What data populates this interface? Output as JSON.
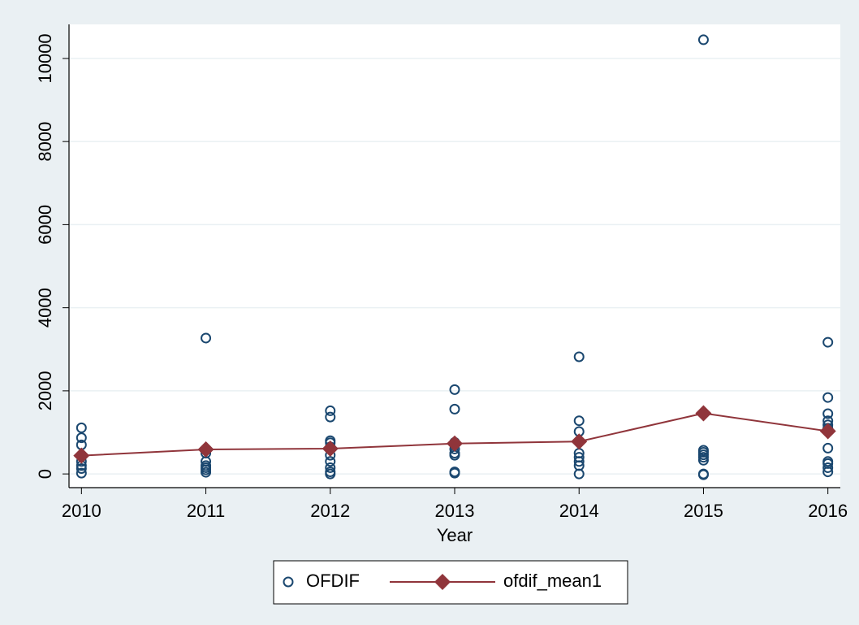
{
  "chart_data": {
    "type": "scatter",
    "x_label": "Year",
    "xlim": [
      2009.9,
      2016.1
    ],
    "xticks": [
      2010,
      2011,
      2012,
      2013,
      2014,
      2015,
      2016
    ],
    "ylim": [
      -330,
      10820
    ],
    "yticks": [
      0,
      2000,
      4000,
      6000,
      8000,
      10000
    ],
    "grid": true,
    "legend_position": "bottom",
    "series": [
      {
        "name": "OFDIF",
        "type": "scatter",
        "color": "#1a476f",
        "x": [
          2010,
          2010,
          2010,
          2010,
          2010,
          2010,
          2010,
          2010,
          2011,
          2011,
          2011,
          2011,
          2011,
          2011,
          2011,
          2012,
          2012,
          2012,
          2012,
          2012,
          2012,
          2012,
          2012,
          2012,
          2012,
          2013,
          2013,
          2013,
          2013,
          2013,
          2013,
          2013,
          2013,
          2013,
          2014,
          2014,
          2014,
          2014,
          2014,
          2014,
          2014,
          2014,
          2015,
          2015,
          2015,
          2015,
          2015,
          2015,
          2015,
          2015,
          2016,
          2016,
          2016,
          2016,
          2016,
          2016,
          2016,
          2016,
          2016,
          2016,
          2016
        ],
        "values": [
          1110,
          870,
          700,
          430,
          300,
          200,
          130,
          20,
          3270,
          500,
          300,
          200,
          150,
          100,
          40,
          1520,
          1370,
          800,
          750,
          650,
          450,
          300,
          150,
          50,
          0,
          2030,
          1560,
          760,
          700,
          600,
          500,
          450,
          50,
          20,
          2820,
          1280,
          1020,
          500,
          400,
          300,
          200,
          0,
          10450,
          570,
          520,
          460,
          400,
          330,
          0,
          -20,
          3170,
          1840,
          1450,
          1280,
          1180,
          1100,
          620,
          300,
          250,
          150,
          50
        ]
      },
      {
        "name": "ofdif_mean1",
        "type": "line",
        "color": "#90353b",
        "x": [
          2010,
          2011,
          2012,
          2013,
          2014,
          2015,
          2016
        ],
        "values": [
          440,
          590,
          610,
          730,
          780,
          1460,
          1030
        ]
      }
    ]
  }
}
